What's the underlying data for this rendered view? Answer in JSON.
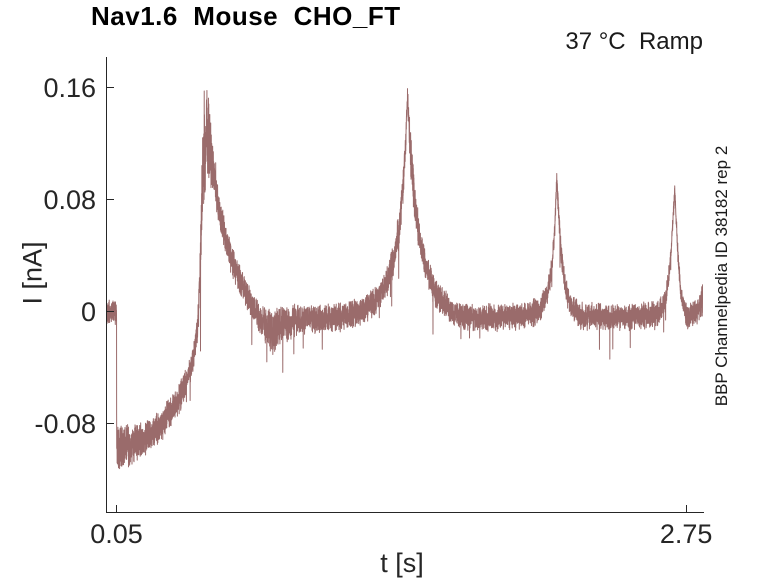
{
  "chart_data": {
    "type": "line",
    "title": "Nav1.6  Mouse  CHO_FT",
    "annotation": "37 °C  Ramp",
    "xlabel": "t [s]",
    "ylabel": "I [nA]",
    "side_label": "BBP Channelpedia ID 38182 rep 2",
    "xlim": [
      0,
      2.83
    ],
    "ylim": [
      -0.143,
      0.182
    ],
    "xticks": [
      {
        "value": 0.05,
        "label": "0.05"
      },
      {
        "value": 2.75,
        "label": "2.75"
      }
    ],
    "yticks": [
      {
        "value": 0.16,
        "label": "0.16"
      },
      {
        "value": 0.08,
        "label": "0.08"
      },
      {
        "value": 0,
        "label": "0"
      },
      {
        "value": -0.08,
        "label": "-0.08"
      }
    ],
    "grid": false,
    "legend": null,
    "line_color": "#9a6b6b",
    "axis_color": "#262626",
    "background": "#ffffff",
    "noise_seed": 987654321,
    "sample_dt": 0.0004,
    "trace_keypoints": [
      [
        0.0,
        0.0,
        0.0065
      ],
      [
        0.05,
        0.0,
        0.0065
      ],
      [
        0.0505,
        -0.097,
        0.01
      ],
      [
        0.1,
        -0.096,
        0.011
      ],
      [
        0.16,
        -0.093,
        0.009
      ],
      [
        0.22,
        -0.087,
        0.008
      ],
      [
        0.28,
        -0.078,
        0.008
      ],
      [
        0.33,
        -0.067,
        0.0075
      ],
      [
        0.37,
        -0.054,
        0.007
      ],
      [
        0.4,
        -0.041,
        0.0065
      ],
      [
        0.42,
        -0.027,
        0.0065
      ],
      [
        0.435,
        -0.01,
        0.007
      ],
      [
        0.444,
        0.018,
        0.01
      ],
      [
        0.451,
        0.06,
        0.018
      ],
      [
        0.457,
        0.1,
        0.022
      ],
      [
        0.465,
        0.122,
        0.027
      ],
      [
        0.478,
        0.127,
        0.027
      ],
      [
        0.488,
        0.12,
        0.023
      ],
      [
        0.498,
        0.11,
        0.016
      ],
      [
        0.515,
        0.094,
        0.012
      ],
      [
        0.535,
        0.075,
        0.01
      ],
      [
        0.56,
        0.056,
        0.009
      ],
      [
        0.6,
        0.036,
        0.008
      ],
      [
        0.64,
        0.02,
        0.0075
      ],
      [
        0.68,
        0.008,
        0.007
      ],
      [
        0.72,
        -0.002,
        0.007
      ],
      [
        0.755,
        -0.01,
        0.009
      ],
      [
        0.79,
        -0.014,
        0.011
      ],
      [
        0.83,
        -0.01,
        0.01
      ],
      [
        0.88,
        -0.007,
        0.008
      ],
      [
        0.95,
        -0.005,
        0.007
      ],
      [
        1.05,
        -0.005,
        0.007
      ],
      [
        1.15,
        -0.003,
        0.007
      ],
      [
        1.22,
        0.001,
        0.007
      ],
      [
        1.28,
        0.008,
        0.007
      ],
      [
        1.33,
        0.02,
        0.0075
      ],
      [
        1.365,
        0.038,
        0.008
      ],
      [
        1.39,
        0.06,
        0.009
      ],
      [
        1.408,
        0.09,
        0.009
      ],
      [
        1.42,
        0.12,
        0.008
      ],
      [
        1.429,
        0.153,
        0.006
      ],
      [
        1.435,
        0.138,
        0.009
      ],
      [
        1.443,
        0.115,
        0.012
      ],
      [
        1.455,
        0.092,
        0.011
      ],
      [
        1.47,
        0.07,
        0.009
      ],
      [
        1.49,
        0.049,
        0.008
      ],
      [
        1.52,
        0.03,
        0.008
      ],
      [
        1.555,
        0.016,
        0.0075
      ],
      [
        1.6,
        0.006,
        0.007
      ],
      [
        1.65,
        -0.001,
        0.0065
      ],
      [
        1.72,
        -0.004,
        0.0065
      ],
      [
        1.85,
        -0.004,
        0.0065
      ],
      [
        1.98,
        -0.003,
        0.0065
      ],
      [
        2.05,
        0.001,
        0.0065
      ],
      [
        2.09,
        0.011,
        0.0065
      ],
      [
        2.114,
        0.032,
        0.006
      ],
      [
        2.128,
        0.062,
        0.005
      ],
      [
        2.137,
        0.096,
        0.004
      ],
      [
        2.145,
        0.072,
        0.006
      ],
      [
        2.158,
        0.042,
        0.006
      ],
      [
        2.175,
        0.018,
        0.006
      ],
      [
        2.205,
        0.004,
        0.006
      ],
      [
        2.25,
        -0.003,
        0.0065
      ],
      [
        2.4,
        -0.004,
        0.0065
      ],
      [
        2.55,
        -0.003,
        0.0065
      ],
      [
        2.62,
        -0.001,
        0.0065
      ],
      [
        2.652,
        0.008,
        0.006
      ],
      [
        2.672,
        0.03,
        0.005
      ],
      [
        2.688,
        0.065,
        0.004
      ],
      [
        2.696,
        0.087,
        0.003
      ],
      [
        2.704,
        0.062,
        0.005
      ],
      [
        2.714,
        0.032,
        0.005
      ],
      [
        2.728,
        0.01,
        0.0055
      ],
      [
        2.748,
        -0.002,
        0.006
      ],
      [
        2.78,
        -0.002,
        0.0065
      ],
      [
        2.81,
        0.0,
        0.007
      ],
      [
        2.828,
        0.012,
        0.009
      ]
    ]
  }
}
